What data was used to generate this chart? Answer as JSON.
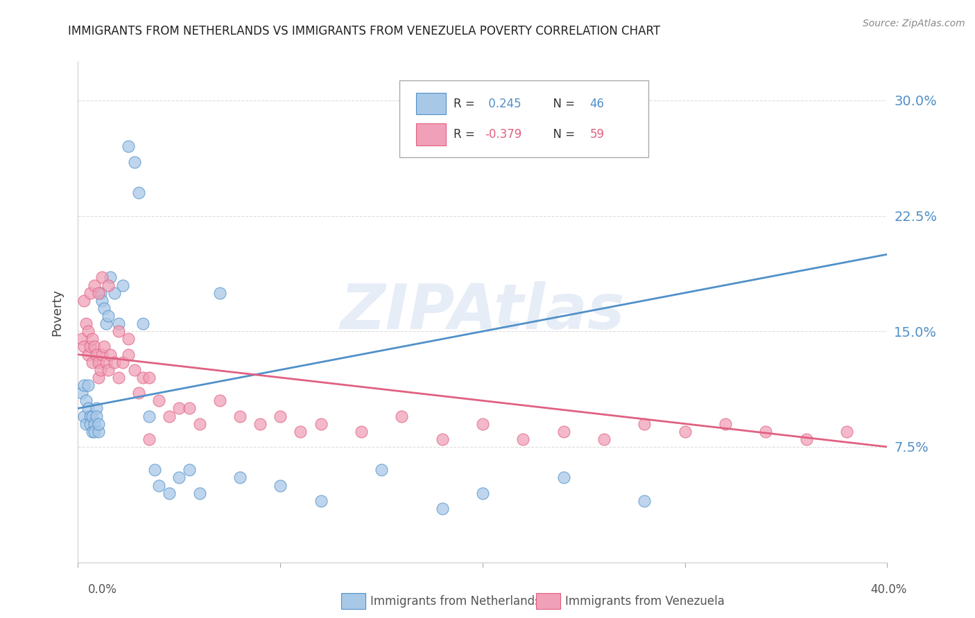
{
  "title": "IMMIGRANTS FROM NETHERLANDS VS IMMIGRANTS FROM VENEZUELA POVERTY CORRELATION CHART",
  "source": "Source: ZipAtlas.com",
  "ylabel": "Poverty",
  "yticks": [
    0.0,
    0.075,
    0.15,
    0.225,
    0.3
  ],
  "ytick_labels": [
    "",
    "7.5%",
    "15.0%",
    "22.5%",
    "30.0%"
  ],
  "xlim": [
    0.0,
    0.4
  ],
  "ylim": [
    0.0,
    0.325
  ],
  "legend_label1": "Immigrants from Netherlands",
  "legend_label2": "Immigrants from Venezuela",
  "blue_color": "#a8c8e8",
  "pink_color": "#f0a0b8",
  "blue_line_color": "#5090c8",
  "pink_line_color": "#e06080",
  "watermark": "ZIPAtlas",
  "netherlands_x": [
    0.002,
    0.003,
    0.003,
    0.004,
    0.004,
    0.005,
    0.005,
    0.006,
    0.006,
    0.007,
    0.007,
    0.008,
    0.008,
    0.009,
    0.009,
    0.01,
    0.01,
    0.011,
    0.012,
    0.013,
    0.014,
    0.015,
    0.016,
    0.018,
    0.02,
    0.022,
    0.025,
    0.028,
    0.03,
    0.032,
    0.035,
    0.038,
    0.04,
    0.045,
    0.05,
    0.055,
    0.06,
    0.07,
    0.08,
    0.1,
    0.12,
    0.15,
    0.18,
    0.2,
    0.24,
    0.28
  ],
  "netherlands_y": [
    0.11,
    0.095,
    0.115,
    0.09,
    0.105,
    0.1,
    0.115,
    0.095,
    0.09,
    0.085,
    0.095,
    0.09,
    0.085,
    0.1,
    0.095,
    0.085,
    0.09,
    0.175,
    0.17,
    0.165,
    0.155,
    0.16,
    0.185,
    0.175,
    0.155,
    0.18,
    0.27,
    0.26,
    0.24,
    0.155,
    0.095,
    0.06,
    0.05,
    0.045,
    0.055,
    0.06,
    0.045,
    0.175,
    0.055,
    0.05,
    0.04,
    0.06,
    0.035,
    0.045,
    0.055,
    0.04
  ],
  "venezuela_x": [
    0.002,
    0.003,
    0.004,
    0.005,
    0.005,
    0.006,
    0.007,
    0.007,
    0.008,
    0.009,
    0.01,
    0.01,
    0.011,
    0.012,
    0.013,
    0.014,
    0.015,
    0.016,
    0.018,
    0.02,
    0.022,
    0.025,
    0.028,
    0.03,
    0.032,
    0.035,
    0.04,
    0.045,
    0.05,
    0.055,
    0.06,
    0.07,
    0.08,
    0.09,
    0.1,
    0.11,
    0.12,
    0.14,
    0.16,
    0.18,
    0.2,
    0.22,
    0.24,
    0.26,
    0.28,
    0.3,
    0.32,
    0.34,
    0.36,
    0.38,
    0.003,
    0.006,
    0.008,
    0.01,
    0.012,
    0.015,
    0.02,
    0.025,
    0.035
  ],
  "venezuela_y": [
    0.145,
    0.14,
    0.155,
    0.15,
    0.135,
    0.14,
    0.13,
    0.145,
    0.14,
    0.135,
    0.13,
    0.12,
    0.125,
    0.135,
    0.14,
    0.13,
    0.125,
    0.135,
    0.13,
    0.12,
    0.13,
    0.135,
    0.125,
    0.11,
    0.12,
    0.12,
    0.105,
    0.095,
    0.1,
    0.1,
    0.09,
    0.105,
    0.095,
    0.09,
    0.095,
    0.085,
    0.09,
    0.085,
    0.095,
    0.08,
    0.09,
    0.08,
    0.085,
    0.08,
    0.09,
    0.085,
    0.09,
    0.085,
    0.08,
    0.085,
    0.17,
    0.175,
    0.18,
    0.175,
    0.185,
    0.18,
    0.15,
    0.145,
    0.08
  ]
}
